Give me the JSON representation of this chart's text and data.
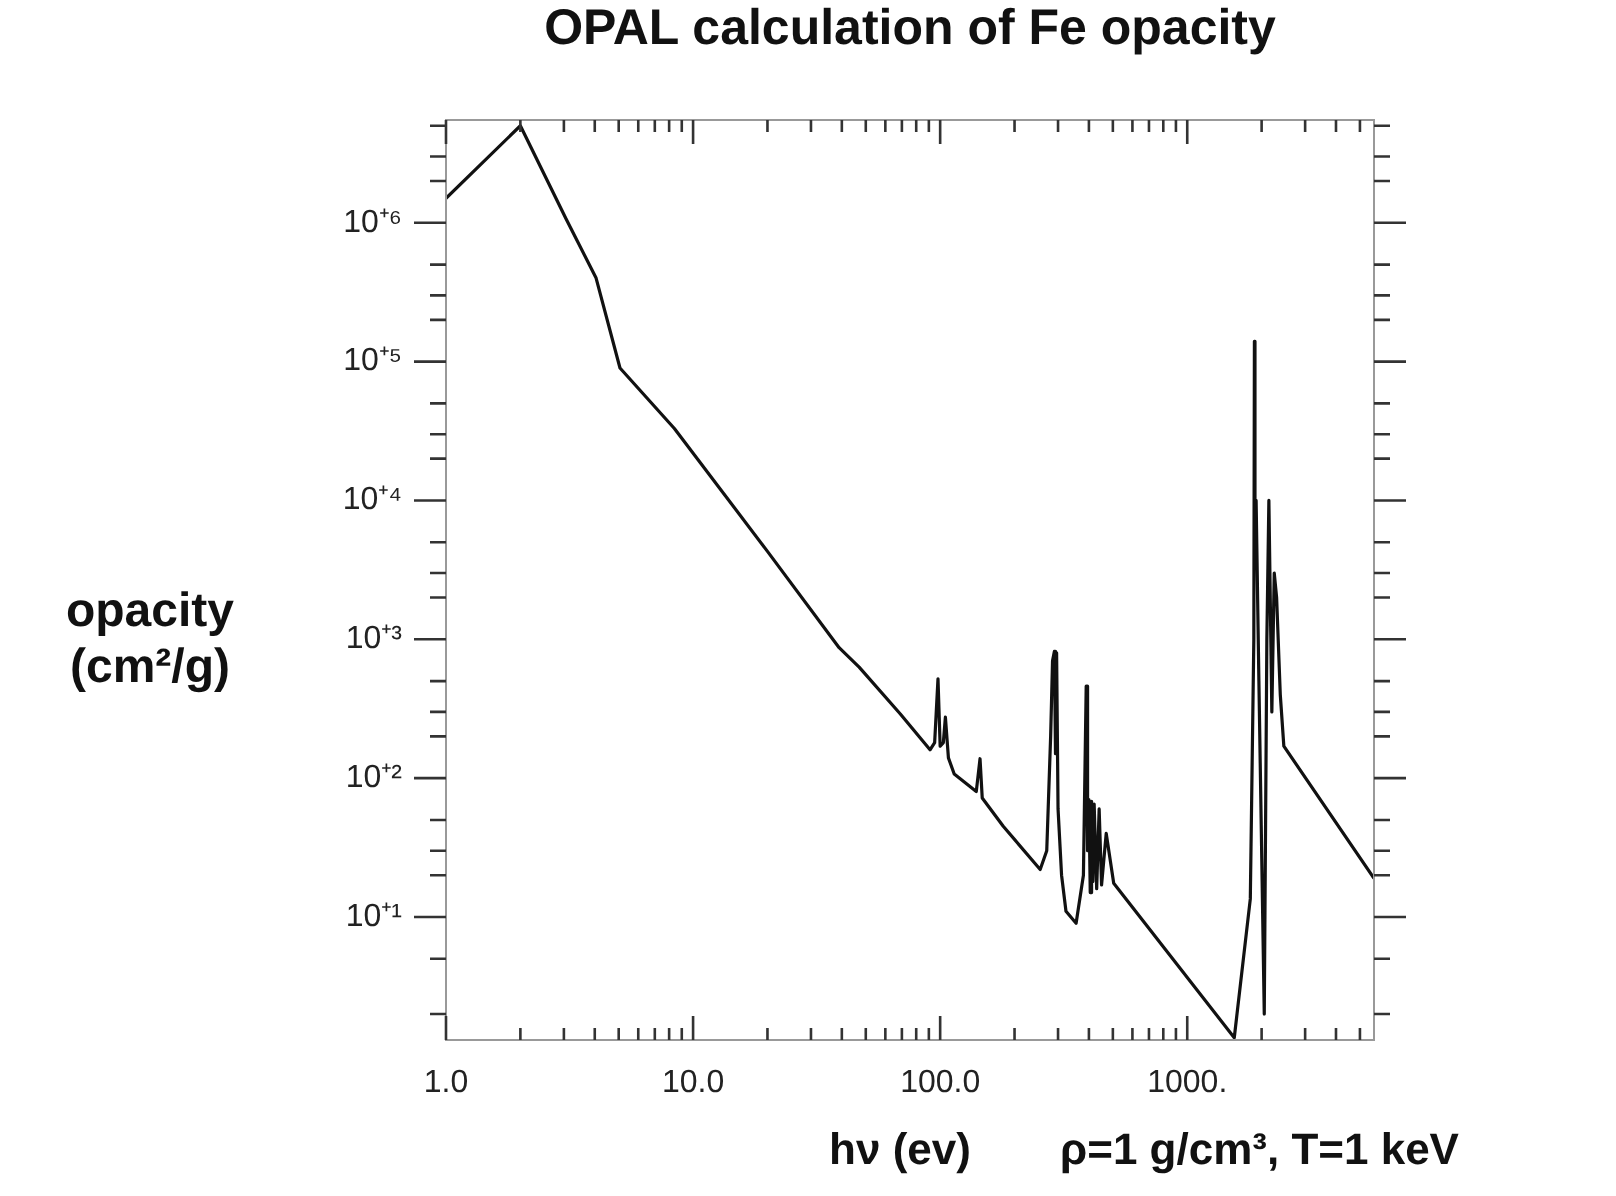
{
  "chart_data": {
    "type": "line",
    "title": "OPAL calculation of Fe opacity",
    "xlabel": "hν (ev)",
    "ylabel": "opacity (cm²/g)",
    "annotations": [
      "ρ=1 g/cm³, T=1 keV"
    ],
    "log": "xy",
    "grid": false,
    "legend": false,
    "marker": "none",
    "line_style": "solid",
    "xlim": [
      1,
      5700
    ],
    "ylim": [
      1.3,
      5500000
    ],
    "xticks": [
      {
        "value": 1,
        "label": "1.0"
      },
      {
        "value": 2,
        "label": null
      },
      {
        "value": 3,
        "label": null
      },
      {
        "value": 4,
        "label": null
      },
      {
        "value": 5,
        "label": null
      },
      {
        "value": 6,
        "label": null
      },
      {
        "value": 7,
        "label": null
      },
      {
        "value": 8,
        "label": null
      },
      {
        "value": 9,
        "label": null
      },
      {
        "value": 10,
        "label": "10.0"
      },
      {
        "value": 20,
        "label": null
      },
      {
        "value": 30,
        "label": null
      },
      {
        "value": 40,
        "label": null
      },
      {
        "value": 50,
        "label": null
      },
      {
        "value": 60,
        "label": null
      },
      {
        "value": 70,
        "label": null
      },
      {
        "value": 80,
        "label": null
      },
      {
        "value": 90,
        "label": null
      },
      {
        "value": 100,
        "label": "100.0"
      },
      {
        "value": 200,
        "label": null
      },
      {
        "value": 300,
        "label": null
      },
      {
        "value": 400,
        "label": null
      },
      {
        "value": 500,
        "label": null
      },
      {
        "value": 600,
        "label": null
      },
      {
        "value": 700,
        "label": null
      },
      {
        "value": 800,
        "label": null
      },
      {
        "value": 900,
        "label": null
      },
      {
        "value": 1000,
        "label": "1000."
      },
      {
        "value": 2000,
        "label": null
      },
      {
        "value": 3000,
        "label": null
      },
      {
        "value": 4000,
        "label": null
      },
      {
        "value": 5000,
        "label": null
      }
    ],
    "yticks": [
      {
        "value": 2,
        "label": null
      },
      {
        "value": 5,
        "label": null
      },
      {
        "value": 10,
        "label": "10⁺¹"
      },
      {
        "value": 20,
        "label": null
      },
      {
        "value": 30,
        "label": null
      },
      {
        "value": 50,
        "label": null
      },
      {
        "value": 100,
        "label": "10⁺²"
      },
      {
        "value": 200,
        "label": null
      },
      {
        "value": 300,
        "label": null
      },
      {
        "value": 500,
        "label": null
      },
      {
        "value": 1000,
        "label": "10⁺³"
      },
      {
        "value": 2000,
        "label": null
      },
      {
        "value": 3000,
        "label": null
      },
      {
        "value": 5000,
        "label": null
      },
      {
        "value": 10000,
        "label": "10⁺⁴"
      },
      {
        "value": 20000,
        "label": null
      },
      {
        "value": 30000,
        "label": null
      },
      {
        "value": 50000,
        "label": null
      },
      {
        "value": 100000,
        "label": "10⁺⁵"
      },
      {
        "value": 200000,
        "label": null
      },
      {
        "value": 300000,
        "label": null
      },
      {
        "value": 500000,
        "label": null
      },
      {
        "value": 1000000,
        "label": "10⁺⁶"
      },
      {
        "value": 2000000,
        "label": null
      },
      {
        "value": 3000000,
        "label": null
      },
      {
        "value": 5000000,
        "label": null
      }
    ],
    "series": [
      {
        "color": "#111111",
        "x": [
          1,
          2,
          3.06,
          4.05,
          5.06,
          8.4,
          20,
          39,
          47,
          69,
          91,
          95,
          98,
          100,
          103,
          105,
          108,
          114,
          140,
          145,
          148,
          180,
          254,
          270,
          280,
          285,
          290,
          293,
          296,
          300,
          310,
          323,
          355,
          380,
          390,
          395,
          400,
          405,
          410,
          415,
          420,
          430,
          440,
          450,
          470,
          504,
          1550,
          1800,
          1860,
          1870,
          1880,
          1900,
          1950,
          2050,
          2100,
          2140,
          2200,
          2250,
          2300,
          2380,
          2460,
          5700
        ],
        "values": [
          1500000,
          5000000,
          1070000,
          400000,
          90000,
          33000,
          4300,
          870,
          630,
          290,
          160,
          180,
          520,
          170,
          180,
          275,
          140,
          107,
          80,
          138,
          72,
          45,
          22,
          30,
          200,
          700,
          820,
          150,
          800,
          60,
          20,
          11,
          9,
          20,
          460,
          30,
          70,
          15,
          68,
          18,
          65,
          16,
          60,
          17,
          40,
          17.5,
          1.35,
          13.5,
          1000,
          140000,
          5000,
          10000,
          500,
          2,
          1000,
          10000,
          300,
          3000,
          2000,
          400,
          170,
          19
        ]
      }
    ]
  }
}
